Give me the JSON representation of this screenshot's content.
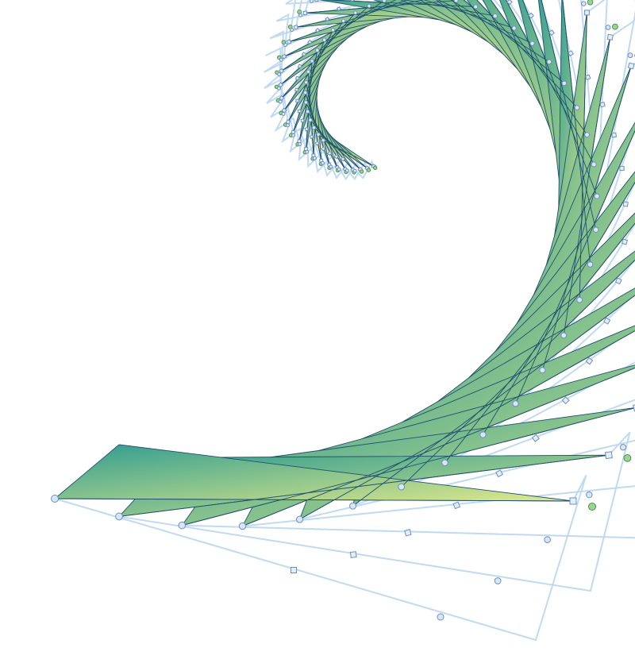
{
  "diagram": {
    "kind": "recursive-triangle-spiral",
    "description_visible_text": [],
    "colors": {
      "background": "#ffffff",
      "fill_outer": "#2f9c90",
      "fill_inner": "#e1e98a",
      "edge": "#1f4f6f",
      "scaffold_line": "#b9d6ef",
      "node_fill": "#d6e7ff",
      "node_stroke": "#6f8fb8",
      "square_node_fill": "#e4eefb",
      "green_node_fill": "#9ad58e",
      "green_node_stroke": "#4a8f5a"
    },
    "structure": {
      "triangle_count": 46,
      "rotation_step_deg": 7.4,
      "scale_step": 0.952,
      "has_scaffold_lines": true,
      "has_square_markers": true,
      "has_green_markers": true,
      "has_circle_markers": true
    }
  }
}
